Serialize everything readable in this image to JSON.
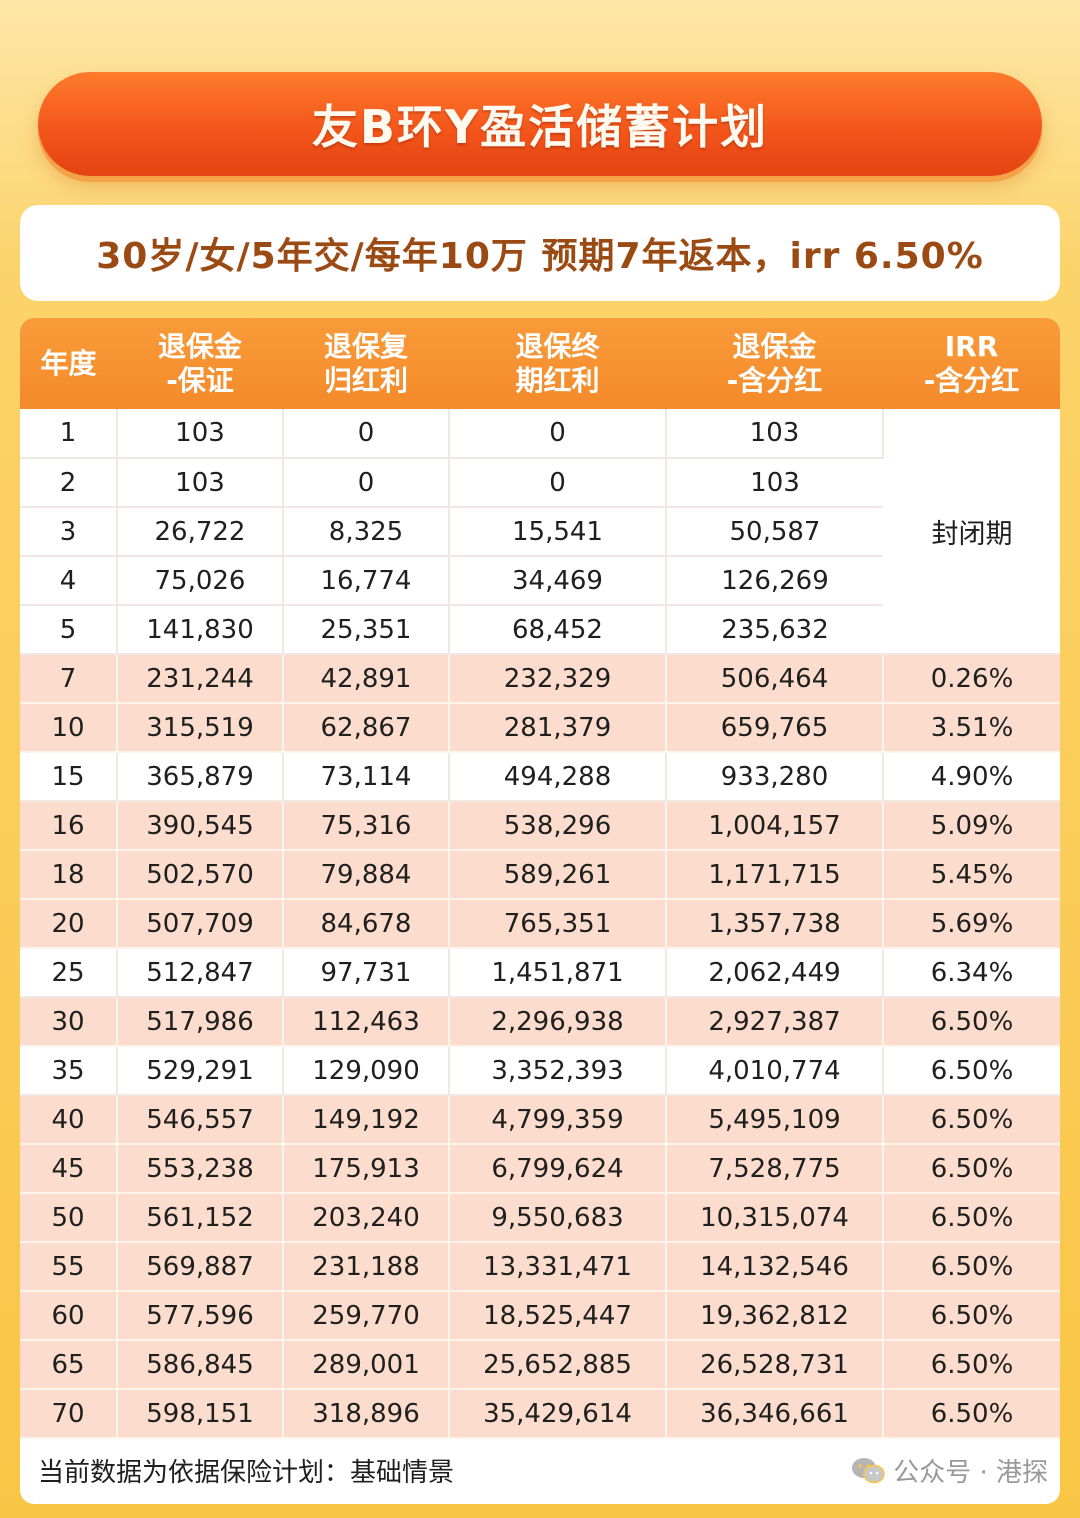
{
  "title": "友B环Y盈活储蓄计划",
  "subtitle": "30岁/女/5年交/每年10万  预期7年返本，irr 6.50%",
  "table": {
    "headers": [
      [
        "年度",
        ""
      ],
      [
        "退保金",
        "-保证"
      ],
      [
        "退保复",
        "归红利"
      ],
      [
        "退保终",
        "期红利"
      ],
      [
        "退保金",
        "-含分红"
      ],
      [
        "IRR",
        "-含分红"
      ]
    ],
    "closed_label": "封闭期",
    "rows": [
      [
        "1",
        "103",
        "0",
        "0",
        "103"
      ],
      [
        "2",
        "103",
        "0",
        "0",
        "103"
      ],
      [
        "3",
        "26,722",
        "8,325",
        "15,541",
        "50,587"
      ],
      [
        "4",
        "75,026",
        "16,774",
        "34,469",
        "126,269"
      ],
      [
        "5",
        "141,830",
        "25,351",
        "68,452",
        "235,632"
      ],
      [
        "7",
        "231,244",
        "42,891",
        "232,329",
        "506,464",
        "0.26%"
      ],
      [
        "10",
        "315,519",
        "62,867",
        "281,379",
        "659,765",
        "3.51%"
      ],
      [
        "15",
        "365,879",
        "73,114",
        "494,288",
        "933,280",
        "4.90%"
      ],
      [
        "16",
        "390,545",
        "75,316",
        "538,296",
        "1,004,157",
        "5.09%"
      ],
      [
        "18",
        "502,570",
        "79,884",
        "589,261",
        "1,171,715",
        "5.45%"
      ],
      [
        "20",
        "507,709",
        "84,678",
        "765,351",
        "1,357,738",
        "5.69%"
      ],
      [
        "25",
        "512,847",
        "97,731",
        "1,451,871",
        "2,062,449",
        "6.34%"
      ],
      [
        "30",
        "517,986",
        "112,463",
        "2,296,938",
        "2,927,387",
        "6.50%"
      ],
      [
        "35",
        "529,291",
        "129,090",
        "3,352,393",
        "4,010,774",
        "6.50%"
      ],
      [
        "40",
        "546,557",
        "149,192",
        "4,799,359",
        "5,495,109",
        "6.50%"
      ],
      [
        "45",
        "553,238",
        "175,913",
        "6,799,624",
        "7,528,775",
        "6.50%"
      ],
      [
        "50",
        "561,152",
        "203,240",
        "9,550,683",
        "10,315,074",
        "6.50%"
      ],
      [
        "55",
        "569,887",
        "231,188",
        "13,331,471",
        "14,132,546",
        "6.50%"
      ],
      [
        "60",
        "577,596",
        "259,770",
        "18,525,447",
        "19,362,812",
        "6.50%"
      ],
      [
        "65",
        "586,845",
        "289,001",
        "25,652,885",
        "26,528,731",
        "6.50%"
      ],
      [
        "70",
        "598,151",
        "318,896",
        "35,429,614",
        "36,346,661",
        "6.50%"
      ]
    ]
  },
  "footer": "当前数据为依据保险计划：基础情景",
  "watermark": "公众号 · 港探",
  "icons": {
    "watermark": "wechat-icon"
  },
  "colors": {
    "title_bar": "#f2531a",
    "header_bg": "#f48a2a",
    "alt_row": "#fbdccd",
    "subtitle_text": "#9a4a12"
  }
}
